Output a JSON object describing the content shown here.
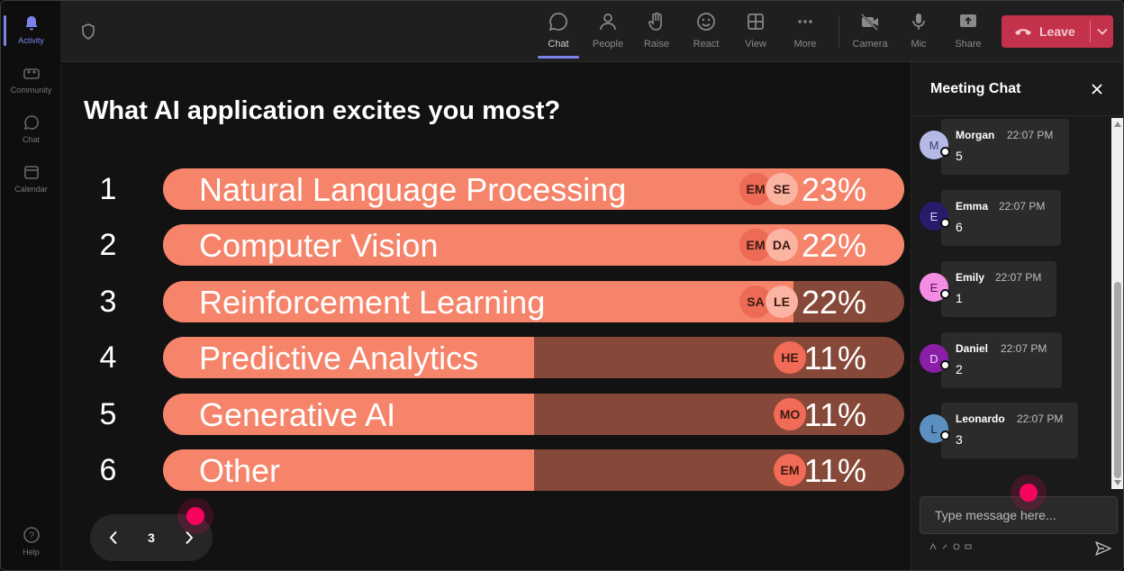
{
  "rail": {
    "items": [
      {
        "label": "Activity",
        "icon": "bell-icon"
      },
      {
        "label": "Community",
        "icon": "community-icon"
      },
      {
        "label": "Chat",
        "icon": "chat-icon"
      },
      {
        "label": "Calendar",
        "icon": "calendar-icon"
      }
    ],
    "help": "Help"
  },
  "toolbar": {
    "buttons": [
      {
        "label": "Chat",
        "icon": "chat-icon"
      },
      {
        "label": "People",
        "icon": "people-icon"
      },
      {
        "label": "Raise",
        "icon": "hand-icon"
      },
      {
        "label": "React",
        "icon": "smile-icon"
      },
      {
        "label": "View",
        "icon": "grid-icon"
      },
      {
        "label": "More",
        "icon": "more-icon"
      },
      {
        "label": "Camera",
        "icon": "camera-off-icon"
      },
      {
        "label": "Mic",
        "icon": "mic-icon"
      },
      {
        "label": "Share",
        "icon": "share-icon"
      }
    ],
    "leave_label": "Leave"
  },
  "poll": {
    "question": "What AI application excites you most?",
    "options": [
      {
        "num": "1",
        "label": "Natural Language Processing",
        "percent": 23,
        "percent_label": "23%",
        "fill": 1.0,
        "voters": [
          "EM",
          "SE"
        ]
      },
      {
        "num": "2",
        "label": "Computer Vision",
        "percent": 22,
        "percent_label": "22%",
        "fill": 1.0,
        "voters": [
          "EM",
          "DA"
        ]
      },
      {
        "num": "3",
        "label": "Reinforcement Learning",
        "percent": 22,
        "percent_label": "22%",
        "fill": 0.85,
        "voters": [
          "SA",
          "LE"
        ]
      },
      {
        "num": "4",
        "label": "Predictive Analytics",
        "percent": 11,
        "percent_label": "11%",
        "fill": 0.5,
        "voters": [
          "HE"
        ]
      },
      {
        "num": "5",
        "label": "Generative AI",
        "percent": 11,
        "percent_label": "11%",
        "fill": 0.5,
        "voters": [
          "MO"
        ]
      },
      {
        "num": "6",
        "label": "Other",
        "percent": 11,
        "percent_label": "11%",
        "fill": 0.5,
        "voters": [
          "EM"
        ]
      }
    ],
    "page": "3"
  },
  "chat": {
    "title": "Meeting Chat",
    "messages": [
      {
        "initial": "M",
        "name": "Morgan",
        "time": "22:07 PM",
        "text": "5",
        "color": "#b4b9e6",
        "initial_color": "#3a3f6b"
      },
      {
        "initial": "E",
        "name": "Emma",
        "time": "22:07 PM",
        "text": "6",
        "color": "#2a1a6b",
        "initial_color": "#d8d2ff"
      },
      {
        "initial": "E",
        "name": "Emily",
        "time": "22:07 PM",
        "text": "1",
        "color": "#f28de3",
        "initial_color": "#5a1050"
      },
      {
        "initial": "D",
        "name": "Daniel",
        "time": "22:07 PM",
        "text": "2",
        "color": "#8a1ea6",
        "initial_color": "#f3d6ff"
      },
      {
        "initial": "L",
        "name": "Leonardo",
        "time": "22:07 PM",
        "text": "3",
        "color": "#5b8fbf",
        "initial_color": "#0f2a45"
      }
    ],
    "placeholder": "Type message here..."
  },
  "colors": {
    "accent": "#7b83eb",
    "bar_fill": "#f5846a",
    "bar_track": "#864838",
    "leave": "#c4314b",
    "cursor_dot": "#f5055d"
  }
}
